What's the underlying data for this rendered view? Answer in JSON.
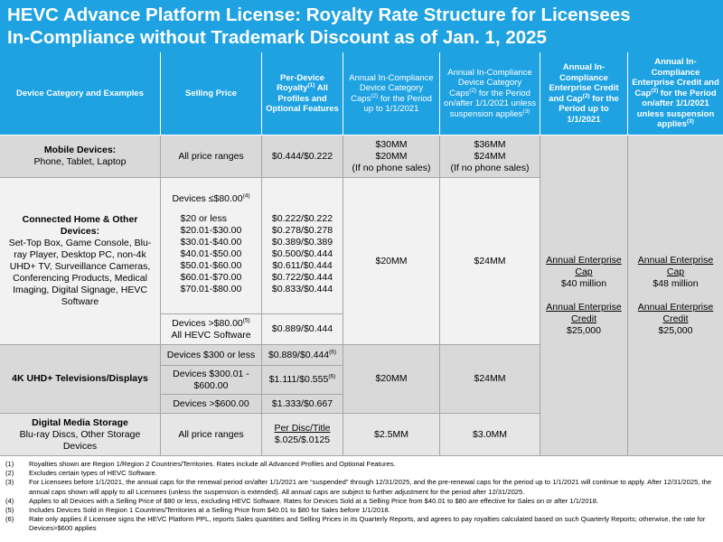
{
  "title_lines": [
    "HEVC Advance Platform License: Royalty Rate Structure for Licensees",
    "In-Compliance without Trademark Discount as of Jan. 1, 2025"
  ],
  "headers": [
    [
      "Device Category and Examples"
    ],
    [
      "Selling Price"
    ],
    [
      "Per-Device Royalty",
      "(1)",
      " All Profiles and Optional Features"
    ],
    [
      "Annual In-Compliance Device Category Caps",
      "(2)",
      " for the Period up to 1/1/2021"
    ],
    [
      "Annual In-Compliance Device Category Caps",
      "(2)",
      " for the Period on/after 1/1/2021 unless suspension applies",
      "(3)"
    ],
    [
      "Annual In-Compliance Enterprise Credit and Cap",
      "(2)",
      " for the Period up to 1/1/2021"
    ],
    [
      "Annual In-Compliance Enterprise Credit and Cap",
      "(2)",
      " for the Period on/after 1/1/2021 unless suspension applies",
      "(3)"
    ]
  ],
  "mobile": {
    "category": "Mobile Devices:",
    "examples": "Phone, Tablet, Laptop",
    "price": "All price ranges",
    "royalty": "$0.444/$0.222",
    "cap_pre": [
      "$30MM",
      "$20MM",
      "(If no phone sales)"
    ],
    "cap_post": [
      "$36MM",
      "$24MM",
      "(If no phone sales)"
    ]
  },
  "connected": {
    "category": "Connected Home & Other Devices:",
    "examples": "Set-Top Box, Game Console, Blu-ray Player, Desktop PC, non-4k UHD+ TV, Surveillance Cameras, Conferencing Products, Medical Imaging, Digital Signage, HEVC Software",
    "low_tier": {
      "label": [
        "Devices ≤$80.00",
        "(4)"
      ],
      "ranges": [
        "$20 or less",
        "$20.01-$30.00",
        "$30.01-$40.00",
        "$40.01-$50.00",
        "$50.01-$60.00",
        "$60.01-$70.00",
        "$70.01-$80.00"
      ],
      "royalties": [
        "$0.222/$0.222",
        "$0.278/$0.278",
        "$0.389/$0.389",
        "$0.500/$0.444",
        "$0.611/$0.444",
        "$0.722/$0.444",
        "$0.833/$0.444"
      ]
    },
    "high_tier": {
      "label": [
        "Devices >$80.00",
        "(5)"
      ],
      "sub": "All HEVC Software",
      "royalty": "$0.889/$0.444"
    },
    "cap_pre": "$20MM",
    "cap_post": "$24MM"
  },
  "uhd": {
    "category": "4K UHD+ Televisions/Displays",
    "tiers": [
      {
        "price": "Devices $300 or less",
        "royalty": [
          "$0.889/$0.444",
          "(6)"
        ]
      },
      {
        "price": "Devices $300.01 - $600.00",
        "royalty": [
          "$1.111/$0.555",
          "(6)"
        ]
      },
      {
        "price": "Devices >$600.00",
        "royalty": [
          "$1.333/$0.667"
        ]
      }
    ],
    "cap_pre": "$20MM",
    "cap_post": "$24MM"
  },
  "digital": {
    "category": "Digital Media Storage",
    "examples": "Blu-ray Discs, Other Storage Devices",
    "price": "All price ranges",
    "royalty_label": "Per Disc/Title",
    "royalty": "$.025/$.0125",
    "cap_pre": "$2.5MM",
    "cap_post": "$3.0MM"
  },
  "enterprise": {
    "pre": {
      "cap_label": "Annual Enterprise Cap",
      "cap": "$40 million",
      "credit_label": "Annual Enterprise Credit",
      "credit": "$25,000"
    },
    "post": {
      "cap_label": "Annual Enterprise Cap",
      "cap": "$48 million",
      "credit_label": "Annual Enterprise Credit",
      "credit": "$25,000"
    }
  },
  "footnotes": [
    {
      "num": "(1)",
      "text": "Royalties shown are Region 1/Region 2 Countries/Territories. Rates include all Advanced Profiles and Optional Features."
    },
    {
      "num": "(2)",
      "text": "Excludes certain types of HEVC Software."
    },
    {
      "num": "(3)",
      "text": "For Licensees before 1/1/2021, the annual caps for the renewal period on/after 1/1/2021 are “suspended” through 12/31/2025, and the pre-renewal caps for the period up to 1/1/2021 will continue to apply. After 12/31/2025, the annual caps shown will apply to all Licensees (unless the suspension is extended).  All annual caps are subject to further adjustment for the period after 12/31/2025."
    },
    {
      "num": "(4)",
      "text": "Applies to all Devices with a Selling Price of $80 or less, excluding HEVC Software.  Rates for Devices Sold at a Selling Price from $40.01 to $80 are effective for Sales on or after 1/1/2018."
    },
    {
      "num": "(5)",
      "text": "Includes Devices Sold in Region 1 Countries/Territories at a Selling Price from $40.01 to $80 for Sales before 1/1/2018."
    },
    {
      "num": "(6)",
      "text": "Rate only applies if Licensee signs the HEVC Platform PPL, reports Sales quantities and Selling Prices in its Quarterly Reports, and agrees to pay royalties calculated based on such Quarterly Reports; otherwise, the rate for Devices>$600 applies"
    }
  ]
}
